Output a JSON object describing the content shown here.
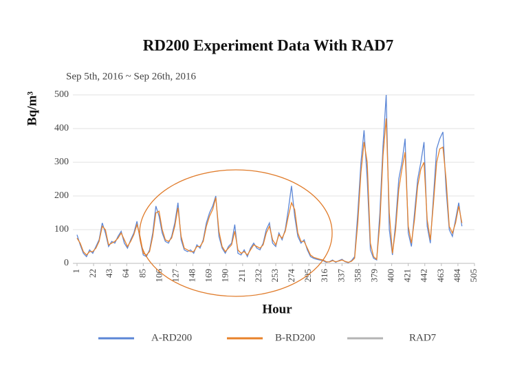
{
  "chart_data": {
    "type": "line",
    "title": "RD200 Experiment Data With RAD7",
    "subtitle": "Sep 5th, 2016 ~ Sep 26th, 2016",
    "x_label": "Hour",
    "y_label": "Bq/m³",
    "x": [
      1,
      5,
      9,
      13,
      17,
      21,
      25,
      29,
      33,
      37,
      41,
      45,
      49,
      53,
      57,
      61,
      65,
      69,
      73,
      77,
      81,
      85,
      89,
      93,
      97,
      101,
      105,
      109,
      113,
      117,
      121,
      125,
      129,
      133,
      137,
      141,
      145,
      149,
      153,
      157,
      161,
      165,
      169,
      173,
      177,
      181,
      185,
      189,
      193,
      197,
      201,
      205,
      209,
      213,
      217,
      221,
      225,
      229,
      233,
      237,
      241,
      245,
      249,
      253,
      257,
      261,
      265,
      269,
      273,
      277,
      281,
      285,
      289,
      293,
      297,
      301,
      305,
      309,
      313,
      317,
      321,
      325,
      329,
      333,
      337,
      341,
      345,
      349,
      353,
      357,
      361,
      365,
      369,
      373,
      377,
      381,
      385,
      389,
      393,
      397,
      401,
      405,
      409,
      413,
      417,
      421,
      425,
      429,
      433,
      437,
      441,
      445,
      449,
      453,
      457,
      461,
      465,
      469,
      473,
      477,
      481,
      485,
      489
    ],
    "series": [
      {
        "name": "A-RD200",
        "color": "#5b86d6",
        "values": [
          85,
          55,
          30,
          20,
          40,
          30,
          50,
          70,
          120,
          90,
          50,
          65,
          60,
          80,
          95,
          60,
          45,
          70,
          90,
          125,
          70,
          25,
          20,
          40,
          90,
          170,
          140,
          90,
          65,
          60,
          80,
          120,
          180,
          70,
          40,
          35,
          40,
          30,
          55,
          45,
          70,
          120,
          150,
          170,
          200,
          80,
          45,
          30,
          50,
          60,
          115,
          30,
          25,
          40,
          20,
          45,
          60,
          45,
          40,
          60,
          100,
          120,
          60,
          50,
          90,
          70,
          100,
          160,
          230,
          140,
          80,
          60,
          70,
          40,
          20,
          15,
          12,
          10,
          8,
          3,
          5,
          10,
          3,
          8,
          12,
          5,
          2,
          8,
          20,
          150,
          300,
          395,
          250,
          40,
          15,
          10,
          150,
          350,
          500,
          100,
          25,
          120,
          250,
          300,
          370,
          90,
          50,
          150,
          250,
          300,
          360,
          110,
          60,
          200,
          340,
          370,
          390,
          220,
          100,
          80,
          130,
          180,
          110
        ]
      },
      {
        "name": "B-RD200",
        "color": "#e8822a",
        "values": [
          75,
          60,
          35,
          25,
          35,
          35,
          45,
          65,
          110,
          100,
          55,
          60,
          65,
          75,
          90,
          70,
          50,
          65,
          85,
          115,
          80,
          30,
          25,
          35,
          80,
          150,
          155,
          100,
          70,
          65,
          75,
          110,
          165,
          80,
          45,
          40,
          35,
          35,
          50,
          50,
          65,
          110,
          140,
          160,
          195,
          95,
          50,
          35,
          45,
          55,
          95,
          40,
          30,
          35,
          25,
          40,
          55,
          50,
          45,
          55,
          90,
          110,
          70,
          55,
          85,
          75,
          95,
          140,
          180,
          160,
          90,
          65,
          65,
          45,
          25,
          18,
          15,
          12,
          10,
          5,
          4,
          8,
          5,
          7,
          10,
          6,
          3,
          6,
          15,
          120,
          270,
          360,
          300,
          60,
          20,
          12,
          120,
          320,
          430,
          150,
          30,
          100,
          220,
          280,
          330,
          110,
          60,
          130,
          230,
          280,
          300,
          130,
          70,
          180,
          300,
          340,
          345,
          250,
          110,
          90,
          120,
          170,
          120
        ]
      },
      {
        "name": "RAD7",
        "color": "#b4b4b4"
      }
    ],
    "xlim": [
      1,
      505
    ],
    "xticks": [
      1,
      22,
      43,
      64,
      85,
      106,
      127,
      148,
      169,
      190,
      211,
      232,
      253,
      274,
      295,
      316,
      337,
      358,
      379,
      400,
      421,
      442,
      463,
      484,
      505
    ],
    "ylim": [
      0,
      500
    ],
    "yticks": [
      0,
      100,
      200,
      300,
      400,
      500
    ],
    "grid": true,
    "legend": "bottom"
  }
}
